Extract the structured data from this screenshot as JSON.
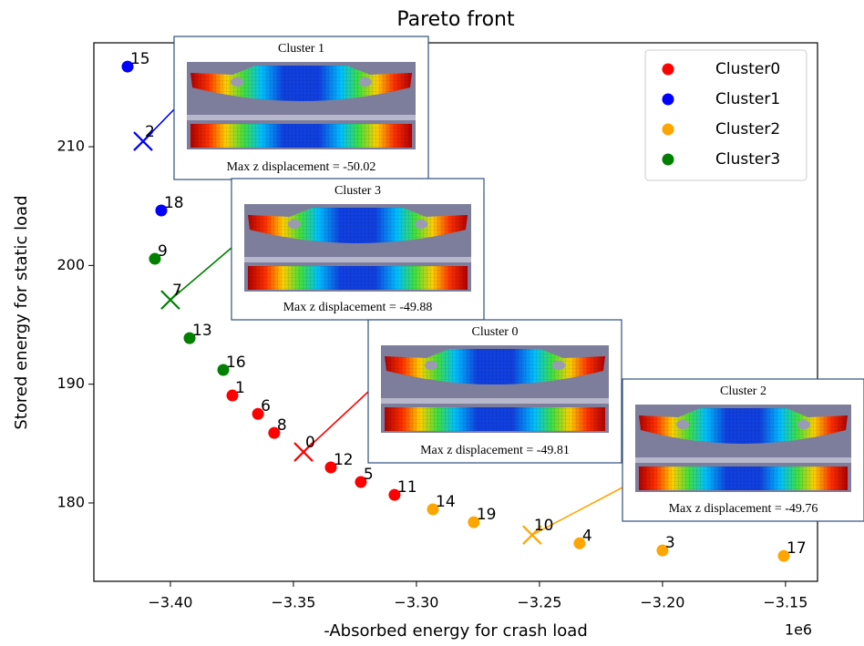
{
  "chart_data": {
    "type": "scatter",
    "title": "Pareto front",
    "x_label": "-Absorbed energy for crash load",
    "y_label": "Stored energy for static load",
    "x_offset_label": "1e6",
    "xlim": [
      -3.4311,
      -3.137
    ],
    "ylim": [
      173.4,
      218.75
    ],
    "xticks": [
      {
        "value": -3.4,
        "label": "−3.40"
      },
      {
        "value": -3.35,
        "label": "−3.35"
      },
      {
        "value": -3.3,
        "label": "−3.30"
      },
      {
        "value": -3.25,
        "label": "−3.25"
      },
      {
        "value": -3.2,
        "label": "−3.20"
      },
      {
        "value": -3.15,
        "label": "−3.15"
      }
    ],
    "yticks": [
      180,
      190,
      200,
      210
    ],
    "legend": "upper right",
    "series": [
      {
        "name": "Cluster0",
        "color": "#ff0000",
        "labels": [
          "1",
          "6",
          "8",
          "12",
          "5",
          "11"
        ],
        "x": [
          -3.3748,
          -3.3644,
          -3.3578,
          -3.3348,
          -3.3226,
          -3.3089
        ],
        "values": [
          189.05,
          187.5,
          185.9,
          182.99,
          181.76,
          180.68
        ],
        "centroid": {
          "label": "0",
          "x": -3.3459,
          "y": 184.29
        }
      },
      {
        "name": "Cluster1",
        "color": "#0000ff",
        "labels": [
          "15",
          "18"
        ],
        "x": [
          -3.4174,
          -3.4037
        ],
        "values": [
          216.75,
          204.63
        ],
        "centroid": {
          "label": "2",
          "x": -3.4111,
          "y": 210.46
        }
      },
      {
        "name": "Cluster2",
        "color": "#ffa500",
        "labels": [
          "14",
          "19",
          "4",
          "3",
          "17"
        ],
        "x": [
          -3.2933,
          -3.2767,
          -3.2337,
          -3.2,
          -3.1507
        ],
        "values": [
          179.46,
          178.38,
          176.6,
          176.0,
          175.54
        ],
        "centroid": {
          "label": "10",
          "x": -3.253,
          "y": 177.3
        }
      },
      {
        "name": "Cluster3",
        "color": "#008000",
        "labels": [
          "9",
          "13",
          "16"
        ],
        "x": [
          -3.4063,
          -3.3922,
          -3.3785
        ],
        "values": [
          200.56,
          193.88,
          191.2
        ],
        "centroid": {
          "label": "7",
          "x": -3.4,
          "y": 197.1
        }
      }
    ],
    "insets": [
      {
        "title": "Cluster 1",
        "caption": "Max z displacement = -50.02"
      },
      {
        "title": "Cluster 3",
        "caption": "Max z displacement = -49.88"
      },
      {
        "title": "Cluster 0",
        "caption": "Max z displacement = -49.81"
      },
      {
        "title": "Cluster 2",
        "caption": "Max z displacement = -49.76"
      }
    ]
  }
}
